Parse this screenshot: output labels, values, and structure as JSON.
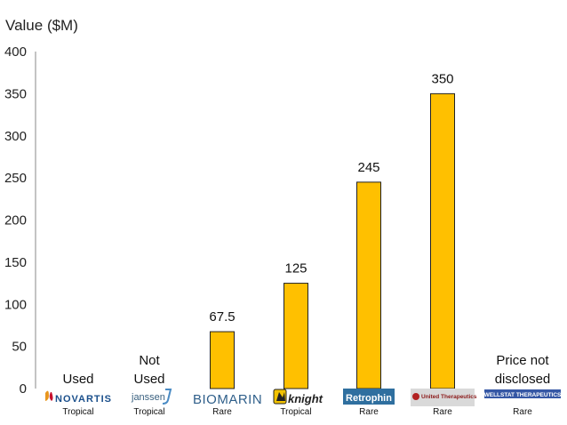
{
  "chart_data": {
    "type": "bar",
    "title": "",
    "ylabel": "Value ($M)",
    "xlabel": "",
    "ylim": [
      0,
      400
    ],
    "yticks": [
      0,
      50,
      100,
      150,
      200,
      250,
      300,
      350,
      400
    ],
    "grid": false,
    "legend": "none",
    "bar_color": "#FFC000",
    "categories": [
      {
        "company": "NOVARTIS",
        "type": "Tropical",
        "value": null,
        "annotation": "Used"
      },
      {
        "company": "janssen",
        "type": "Tropical",
        "value": null,
        "annotation": "Not Used"
      },
      {
        "company": "BIOMARIN",
        "type": "Rare",
        "value": 67.5,
        "annotation": "67.5"
      },
      {
        "company": "knight",
        "type": "Tropical",
        "value": 125,
        "annotation": "125"
      },
      {
        "company": "Retrophin",
        "type": "Rare",
        "value": 245,
        "annotation": "245"
      },
      {
        "company": "United Therapeutics",
        "type": "Rare",
        "value": 350,
        "annotation": "350"
      },
      {
        "company": "WELLSTAT THERAPEUTICS",
        "type": "Rare",
        "value": null,
        "annotation": "Price not disclosed"
      }
    ]
  }
}
